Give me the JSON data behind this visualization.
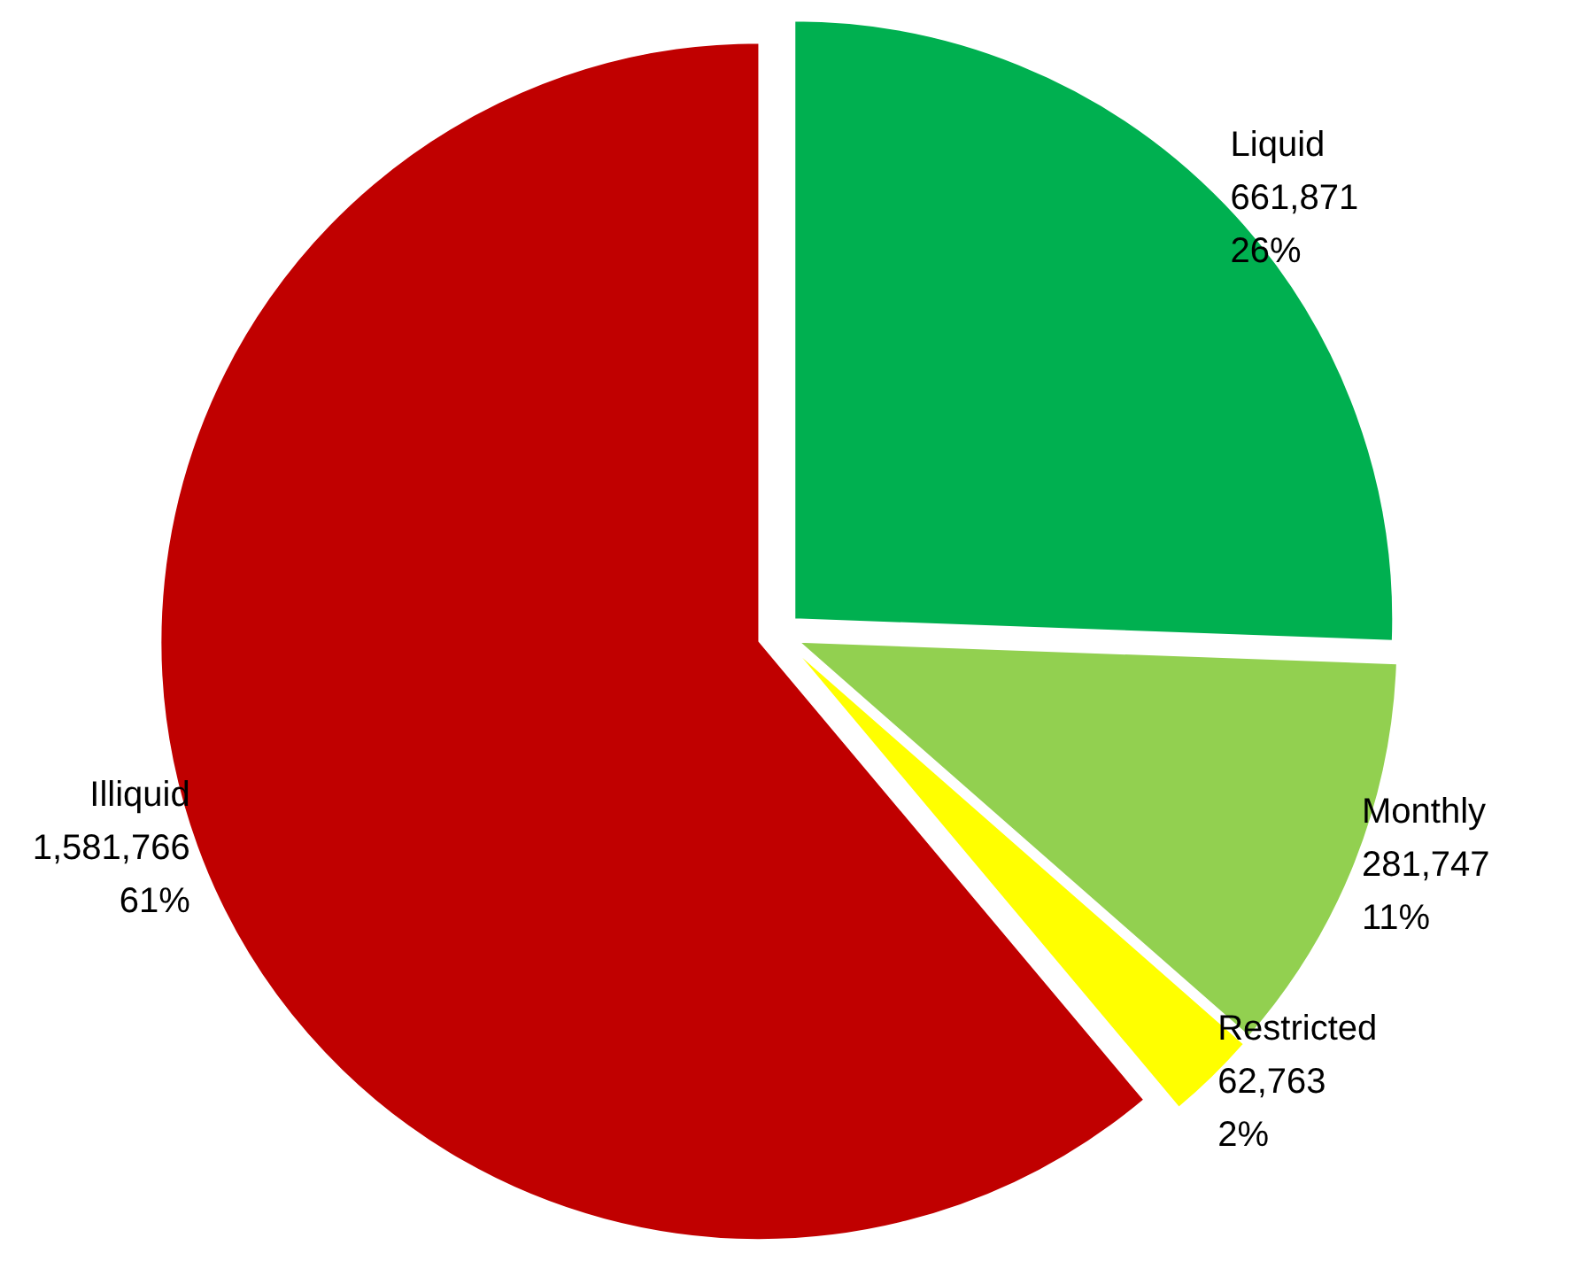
{
  "chart_data": {
    "type": "pie",
    "categories": [
      "Liquid",
      "Monthly",
      "Restricted",
      "Illiquid"
    ],
    "values": [
      661871,
      281747,
      62763,
      1581766
    ],
    "colors": [
      "#00b050",
      "#92d050",
      "#ffff00",
      "#c00000"
    ],
    "value_labels": [
      "661,871\n26%",
      "281,747\n11%",
      "62,763\n2%",
      "1,581,766\n61%"
    ],
    "legend": false
  }
}
